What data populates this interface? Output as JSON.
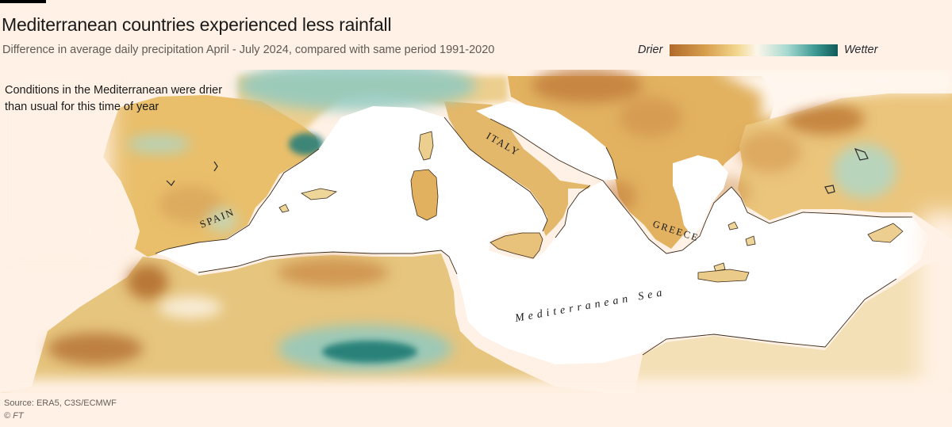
{
  "header": {
    "title": "Mediterranean countries experienced less rainfall",
    "subtitle": "Difference in average daily precipitation April - July 2024, compared with same period 1991-2020"
  },
  "legend": {
    "left_label": "Drier",
    "right_label": "Wetter",
    "colors": [
      "#b06a2c",
      "#d9a04e",
      "#f2d78e",
      "#fdf6ea",
      "#a7d9d0",
      "#3f9c95",
      "#0f5b5a"
    ]
  },
  "annotation": {
    "text": "Conditions in the Mediterranean were drier than usual for this time of year"
  },
  "map": {
    "labels": {
      "spain": "SPAIN",
      "italy": "ITALY",
      "greece": "GREECE",
      "sea": "Mediterranean Sea"
    },
    "colors": {
      "background": "#fff1e5",
      "sea": "#ffffff",
      "dry": "#e6b867",
      "very_dry": "#b97132",
      "wet": "#9fd2cb",
      "very_wet": "#1f7a73"
    }
  },
  "footer": {
    "source": "Source: ERA5, C3S/ECMWF",
    "copyright": "© FT"
  }
}
